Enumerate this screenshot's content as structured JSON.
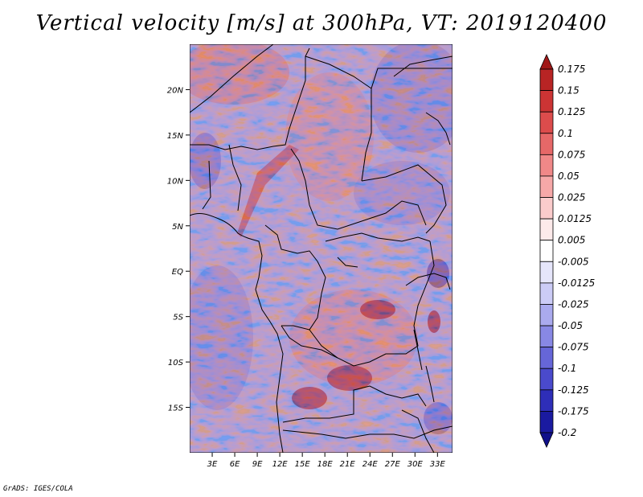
{
  "title": "Vertical velocity [m/s] at 300hPa, VT: 2019120400",
  "footer": "GrADS: IGES/COLA",
  "map": {
    "lat_range": [
      -20,
      25
    ],
    "lon_range": [
      0,
      35
    ],
    "lat_ticks": [
      "20N",
      "15N",
      "10N",
      "5N",
      "EQ",
      "5S",
      "10S",
      "15S"
    ],
    "lat_tick_values": [
      20,
      15,
      10,
      5,
      0,
      -5,
      -10,
      -15
    ],
    "lon_ticks": [
      "3E",
      "6E",
      "9E",
      "12E",
      "15E",
      "18E",
      "21E",
      "24E",
      "27E",
      "30E",
      "33E"
    ],
    "lon_tick_values": [
      3,
      6,
      9,
      12,
      15,
      18,
      21,
      24,
      27,
      30,
      33
    ]
  },
  "colorbar": {
    "labels": [
      "0.175",
      "0.15",
      "0.125",
      "0.1",
      "0.075",
      "0.05",
      "0.025",
      "0.0125",
      "0.005",
      "-0.005",
      "-0.0125",
      "-0.025",
      "-0.05",
      "-0.075",
      "-0.1",
      "-0.125",
      "-0.175",
      "-0.2"
    ],
    "colors": [
      "#a01818",
      "#b82424",
      "#cc3434",
      "#dc4c4c",
      "#e66868",
      "#f08888",
      "#f6a8a8",
      "#fbcccc",
      "#fdeaea",
      "#ffffff",
      "#e6e6fb",
      "#ccccf6",
      "#aaaaee",
      "#8888e4",
      "#6666d8",
      "#4a4acc",
      "#2e2eb8",
      "#1a1aa0",
      "#10108a"
    ]
  }
}
